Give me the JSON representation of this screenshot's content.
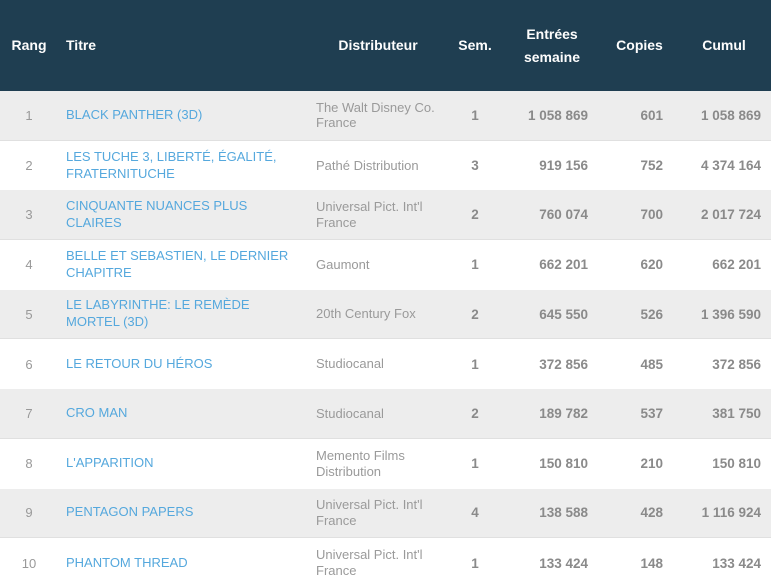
{
  "colors": {
    "header_bg": "#1f3e51",
    "header_text": "#fdfdfd",
    "title_link": "#55a8dd",
    "row_alt_bg": "#ededed",
    "number_text": "#8a8a8a",
    "muted_text": "#9a9a9a"
  },
  "table": {
    "columns": [
      {
        "key": "rang",
        "label": "Rang"
      },
      {
        "key": "titre",
        "label": "Titre"
      },
      {
        "key": "distributeur",
        "label": "Distributeur"
      },
      {
        "key": "sem",
        "label": "Sem."
      },
      {
        "key": "entrees",
        "label": "Entrées semaine"
      },
      {
        "key": "copies",
        "label": "Copies"
      },
      {
        "key": "cumul",
        "label": "Cumul"
      }
    ],
    "rows": [
      {
        "rang": "1",
        "titre": "BLACK PANTHER (3D)",
        "distributeur": "The Walt Disney Co. France",
        "sem": "1",
        "entrees": "1 058 869",
        "copies": "601",
        "cumul": "1 058 869"
      },
      {
        "rang": "2",
        "titre": "LES TUCHE 3, LIBERTÉ, ÉGALITÉ, FRATERNITUCHE",
        "distributeur": "Pathé Distribution",
        "sem": "3",
        "entrees": "919 156",
        "copies": "752",
        "cumul": "4 374 164"
      },
      {
        "rang": "3",
        "titre": "CINQUANTE NUANCES PLUS CLAIRES",
        "distributeur": "Universal Pict. Int'l France",
        "sem": "2",
        "entrees": "760 074",
        "copies": "700",
        "cumul": "2 017 724"
      },
      {
        "rang": "4",
        "titre": "BELLE ET SEBASTIEN, LE DERNIER CHAPITRE",
        "distributeur": "Gaumont",
        "sem": "1",
        "entrees": "662 201",
        "copies": "620",
        "cumul": "662 201"
      },
      {
        "rang": "5",
        "titre": "LE LABYRINTHE: LE REMÈDE MORTEL (3D)",
        "distributeur": "20th Century Fox",
        "sem": "2",
        "entrees": "645 550",
        "copies": "526",
        "cumul": "1 396 590"
      },
      {
        "rang": "6",
        "titre": "LE RETOUR DU HÉROS",
        "distributeur": "Studiocanal",
        "sem": "1",
        "entrees": "372 856",
        "copies": "485",
        "cumul": "372 856"
      },
      {
        "rang": "7",
        "titre": "CRO MAN",
        "distributeur": "Studiocanal",
        "sem": "2",
        "entrees": "189 782",
        "copies": "537",
        "cumul": "381 750"
      },
      {
        "rang": "8",
        "titre": "L'APPARITION",
        "distributeur": "Memento Films Distribution",
        "sem": "1",
        "entrees": "150 810",
        "copies": "210",
        "cumul": "150 810"
      },
      {
        "rang": "9",
        "titre": "PENTAGON PAPERS",
        "distributeur": "Universal Pict. Int'l France",
        "sem": "4",
        "entrees": "138 588",
        "copies": "428",
        "cumul": "1 116 924"
      },
      {
        "rang": "10",
        "titre": "PHANTOM THREAD",
        "distributeur": "Universal Pict. Int'l France",
        "sem": "1",
        "entrees": "133 424",
        "copies": "148",
        "cumul": "133 424"
      }
    ]
  }
}
